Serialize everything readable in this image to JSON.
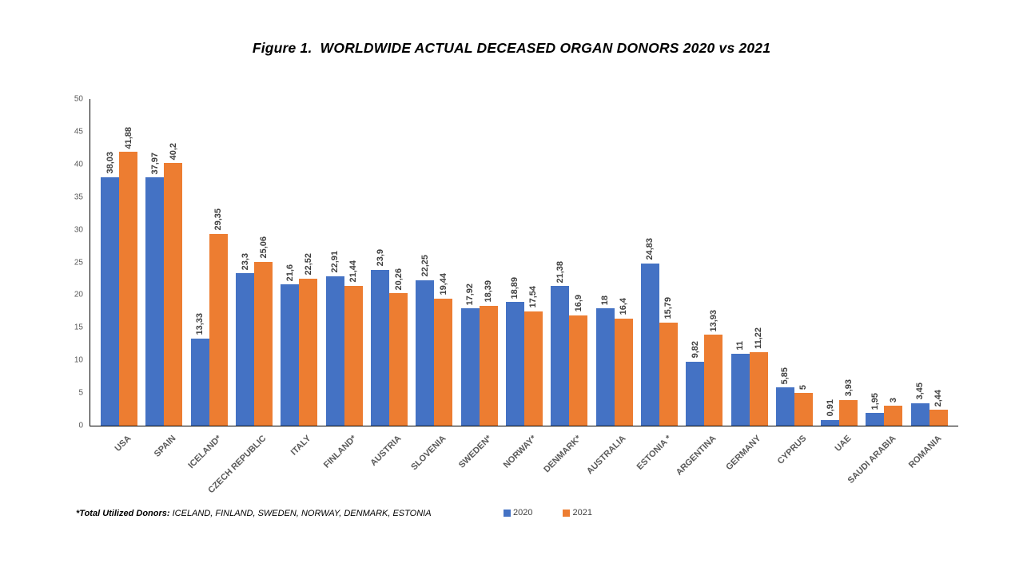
{
  "title": "Figure 1.  WORLDWIDE ACTUAL DECEASED ORGAN DONORS 2020 vs 2021",
  "chart_data": {
    "type": "bar",
    "title": "Figure 1.  WORLDWIDE ACTUAL DECEASED ORGAN DONORS 2020 vs 2021",
    "categories": [
      "USA",
      "SPAIN",
      "ICELAND*",
      "CZECH REPUBLIC",
      "ITALY",
      "FINLAND*",
      "AUSTRIA",
      "SLOVENIA",
      "SWEDEN*",
      "NORWAY*",
      "DENMARK*",
      "AUSTRALIA",
      "ESTONIA *",
      "ARGENTINA",
      "GERMANY",
      "CYPRUS",
      "UAE",
      "SAUDI ARABIA",
      "ROMANIA"
    ],
    "series": [
      {
        "name": "2020",
        "color": "#4472C4",
        "values": [
          38.03,
          37.97,
          13.33,
          23.3,
          21.6,
          22.91,
          23.9,
          22.25,
          17.92,
          18.89,
          21.38,
          18,
          24.83,
          9.82,
          11,
          5.85,
          0.91,
          1.95,
          3.45
        ],
        "labels": [
          "38,03",
          "37,97",
          "13,33",
          "23,3",
          "21,6",
          "22,91",
          "23,9",
          "22,25",
          "17,92",
          "18,89",
          "21,38",
          "18",
          "24,83",
          "9,82",
          "11",
          "5,85",
          "0,91",
          "1,95",
          "3,45"
        ]
      },
      {
        "name": "2021",
        "color": "#ED7D31",
        "values": [
          41.88,
          40.2,
          29.35,
          25.06,
          22.52,
          21.44,
          20.26,
          19.44,
          18.39,
          17.54,
          16.9,
          16.4,
          15.79,
          13.93,
          11.22,
          5,
          3.93,
          3,
          2.44
        ],
        "labels": [
          "41,88",
          "40,2",
          "29,35",
          "25,06",
          "22,52",
          "21,44",
          "20,26",
          "19,44",
          "18,39",
          "17,54",
          "16,9",
          "16,4",
          "15,79",
          "13,93",
          "11,22",
          "5",
          "3,93",
          "3",
          "2,44"
        ]
      }
    ],
    "xlabel": "",
    "ylabel": "",
    "ylim": [
      0,
      50
    ],
    "ytick_step": 5,
    "grid": false,
    "legend_position": "bottom"
  },
  "legend": {
    "items": [
      {
        "label": "2020",
        "color": "#4472C4"
      },
      {
        "label": "2021",
        "color": "#ED7D31"
      }
    ]
  },
  "footnote": {
    "bold": "*Total Utilized Donors:",
    "rest": " ICELAND, FINLAND, SWEDEN, NORWAY, DENMARK, ESTONIA"
  },
  "colors": {
    "background": "#FFFFFF",
    "axis_line": "#000000",
    "tick_label": "#595959",
    "category_label": "#595959",
    "value_label": "#3F3F3F",
    "series_2020": "#4472C4",
    "series_2021": "#ED7D31"
  }
}
